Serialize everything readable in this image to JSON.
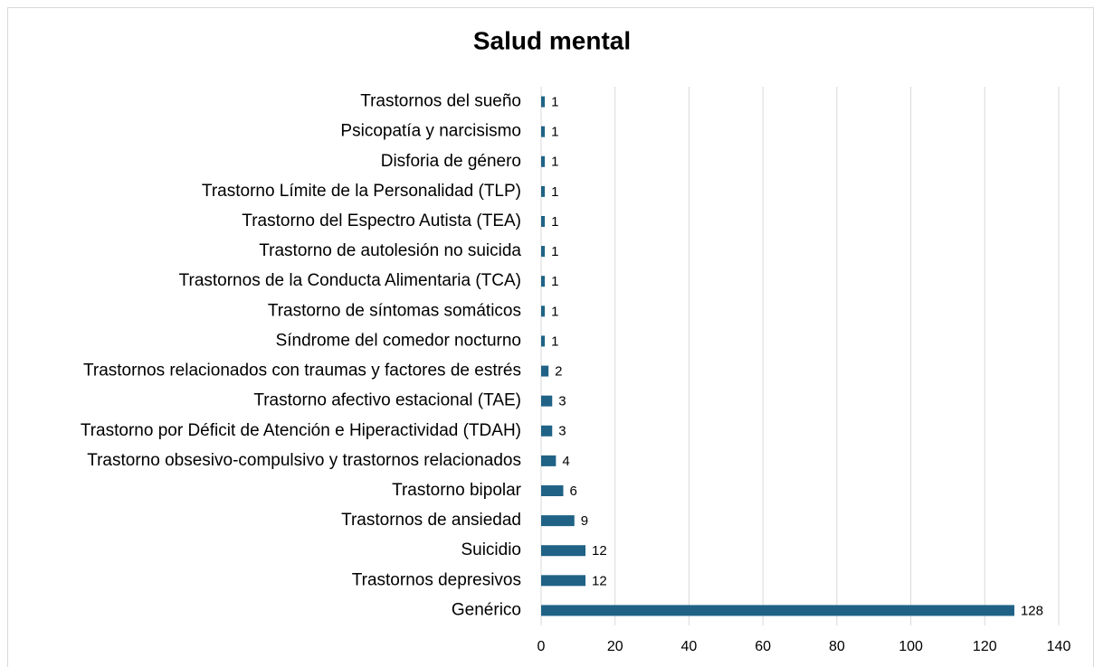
{
  "chart_data": {
    "type": "bar",
    "orientation": "horizontal",
    "title": "Salud mental",
    "categories": [
      "Trastornos del sueño",
      "Psicopatía y narcisismo",
      "Disforia de género",
      "Trastorno Límite de la Personalidad (TLP)",
      "Trastorno del Espectro Autista (TEA)",
      "Trastorno de autolesión no suicida",
      "Trastornos de la Conducta Alimentaria (TCA)",
      "Trastorno de síntomas somáticos",
      "Síndrome del comedor nocturno",
      "Trastornos relacionados con traumas y factores de estrés",
      "Trastorno afectivo estacional (TAE)",
      "Trastorno por Déficit de Atención e Hiperactividad (TDAH)",
      "Trastorno obsesivo-compulsivo y trastornos relacionados",
      "Trastorno bipolar",
      "Trastornos de ansiedad",
      "Suicidio",
      "Trastornos depresivos",
      "Genérico"
    ],
    "values": [
      1,
      1,
      1,
      1,
      1,
      1,
      1,
      1,
      1,
      2,
      3,
      3,
      4,
      6,
      9,
      12,
      12,
      128
    ],
    "color": "#1f6286",
    "xlim": [
      0,
      140
    ],
    "xticks": [
      0,
      20,
      40,
      60,
      80,
      100,
      120,
      140
    ],
    "grid": true
  }
}
